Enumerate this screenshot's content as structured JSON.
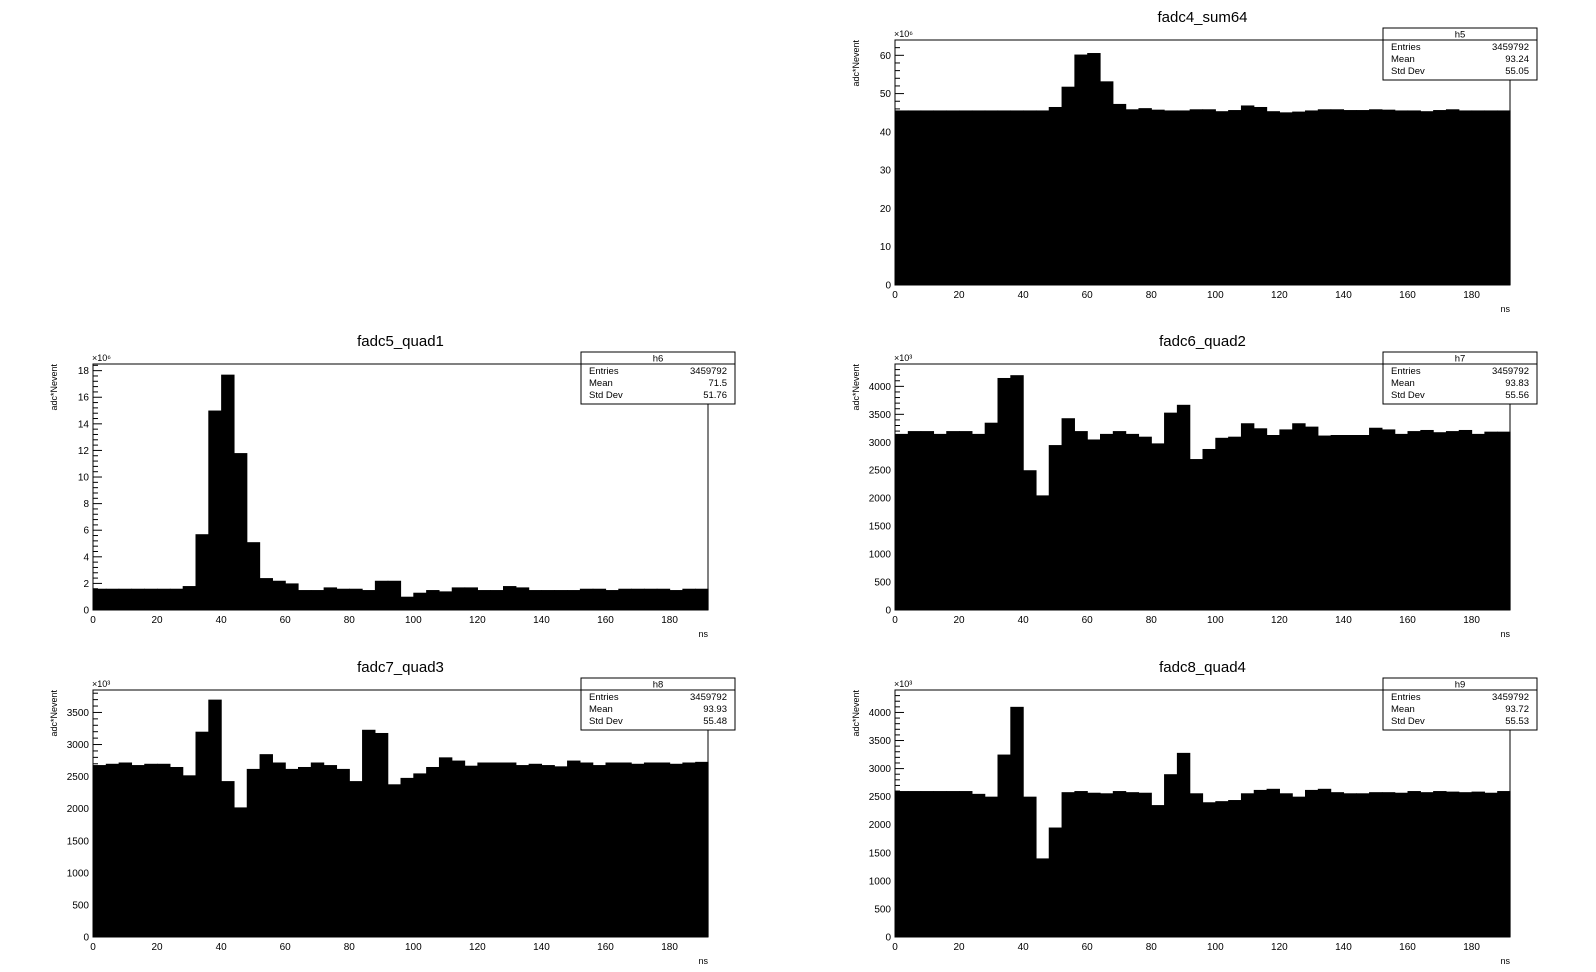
{
  "chart_data": [
    {
      "type": "bar",
      "histogram": true,
      "title": "fadc4_sum64",
      "xlabel": "ns",
      "ylabel": "adc*Nevent",
      "y_multiplier": "×10⁶",
      "xlim": [
        0,
        192
      ],
      "ylim": [
        0,
        64
      ],
      "bin_width": 4,
      "xticks": [
        0,
        20,
        40,
        60,
        80,
        100,
        120,
        140,
        160,
        180
      ],
      "yticks": [
        0,
        10,
        20,
        30,
        40,
        50,
        60
      ],
      "values": [
        45.6,
        45.6,
        45.6,
        45.6,
        45.6,
        45.6,
        45.6,
        45.6,
        45.6,
        45.6,
        45.6,
        45.6,
        46.5,
        51.8,
        60.2,
        60.6,
        53.2,
        47.3,
        45.9,
        46.2,
        45.8,
        45.6,
        45.6,
        45.9,
        45.9,
        45.4,
        45.7,
        46.9,
        46.5,
        45.4,
        45.1,
        45.3,
        45.6,
        45.9,
        45.9,
        45.7,
        45.7,
        45.9,
        45.8,
        45.6,
        45.6,
        45.4,
        45.7,
        45.9,
        45.6,
        45.6,
        45.6,
        45.6
      ],
      "stats": {
        "name": "h5",
        "entries": "3459792",
        "mean": "93.24",
        "std_dev": "55.05"
      }
    },
    {
      "type": "bar",
      "histogram": true,
      "title": "fadc5_quad1",
      "xlabel": "ns",
      "ylabel": "adc*Nevent",
      "y_multiplier": "×10⁶",
      "xlim": [
        0,
        192
      ],
      "ylim": [
        0,
        18.5
      ],
      "bin_width": 4,
      "xticks": [
        0,
        20,
        40,
        60,
        80,
        100,
        120,
        140,
        160,
        180
      ],
      "yticks": [
        0,
        2,
        4,
        6,
        8,
        10,
        12,
        14,
        16,
        18
      ],
      "values": [
        1.6,
        1.6,
        1.6,
        1.6,
        1.6,
        1.6,
        1.6,
        1.8,
        5.7,
        15.0,
        17.7,
        11.8,
        5.1,
        2.4,
        2.2,
        2.0,
        1.5,
        1.5,
        1.7,
        1.6,
        1.6,
        1.5,
        2.2,
        2.2,
        1.0,
        1.3,
        1.5,
        1.4,
        1.7,
        1.7,
        1.5,
        1.5,
        1.8,
        1.7,
        1.5,
        1.5,
        1.5,
        1.5,
        1.6,
        1.6,
        1.5,
        1.6,
        1.6,
        1.6,
        1.6,
        1.5,
        1.6,
        1.6
      ],
      "stats": {
        "name": "h6",
        "entries": "3459792",
        "mean": "71.5",
        "std_dev": "51.76"
      }
    },
    {
      "type": "bar",
      "histogram": true,
      "title": "fadc6_quad2",
      "xlabel": "ns",
      "ylabel": "adc*Nevent",
      "y_multiplier": "×10³",
      "xlim": [
        0,
        192
      ],
      "ylim": [
        0,
        4400
      ],
      "bin_width": 4,
      "xticks": [
        0,
        20,
        40,
        60,
        80,
        100,
        120,
        140,
        160,
        180
      ],
      "yticks": [
        0,
        500,
        1000,
        1500,
        2000,
        2500,
        3000,
        3500,
        4000
      ],
      "values": [
        3150,
        3200,
        3200,
        3150,
        3200,
        3200,
        3150,
        3350,
        4150,
        4200,
        2500,
        2050,
        2950,
        3430,
        3200,
        3050,
        3150,
        3200,
        3150,
        3100,
        2980,
        3530,
        3670,
        2700,
        2880,
        3080,
        3100,
        3340,
        3250,
        3130,
        3230,
        3340,
        3280,
        3120,
        3130,
        3130,
        3130,
        3260,
        3230,
        3150,
        3200,
        3220,
        3180,
        3200,
        3220,
        3150,
        3190,
        3190
      ],
      "stats": {
        "name": "h7",
        "entries": "3459792",
        "mean": "93.83",
        "std_dev": "55.56"
      }
    },
    {
      "type": "bar",
      "histogram": true,
      "title": "fadc7_quad3",
      "xlabel": "ns",
      "ylabel": "adc*Nevent",
      "y_multiplier": "×10³",
      "xlim": [
        0,
        192
      ],
      "ylim": [
        0,
        3850
      ],
      "bin_width": 4,
      "xticks": [
        0,
        20,
        40,
        60,
        80,
        100,
        120,
        140,
        160,
        180
      ],
      "yticks": [
        0,
        500,
        1000,
        1500,
        2000,
        2500,
        3000,
        3500
      ],
      "values": [
        2680,
        2700,
        2720,
        2680,
        2700,
        2700,
        2650,
        2520,
        3200,
        3700,
        2430,
        2020,
        2620,
        2850,
        2720,
        2620,
        2650,
        2720,
        2680,
        2620,
        2430,
        3230,
        3180,
        2380,
        2480,
        2550,
        2650,
        2800,
        2750,
        2670,
        2720,
        2720,
        2720,
        2680,
        2700,
        2680,
        2660,
        2750,
        2720,
        2680,
        2720,
        2720,
        2700,
        2720,
        2720,
        2700,
        2720,
        2730
      ],
      "stats": {
        "name": "h8",
        "entries": "3459792",
        "mean": "93.93",
        "std_dev": "55.48"
      }
    },
    {
      "type": "bar",
      "histogram": true,
      "title": "fadc8_quad4",
      "xlabel": "ns",
      "ylabel": "adc*Nevent",
      "y_multiplier": "×10³",
      "xlim": [
        0,
        192
      ],
      "ylim": [
        0,
        4400
      ],
      "bin_width": 4,
      "xticks": [
        0,
        20,
        40,
        60,
        80,
        100,
        120,
        140,
        160,
        180
      ],
      "yticks": [
        0,
        500,
        1000,
        1500,
        2000,
        2500,
        3000,
        3500,
        4000
      ],
      "values": [
        2600,
        2600,
        2600,
        2600,
        2600,
        2600,
        2550,
        2500,
        3250,
        4100,
        2500,
        1400,
        1950,
        2580,
        2600,
        2570,
        2560,
        2600,
        2580,
        2570,
        2350,
        2900,
        3280,
        2560,
        2400,
        2420,
        2440,
        2560,
        2620,
        2640,
        2560,
        2500,
        2620,
        2640,
        2580,
        2560,
        2560,
        2580,
        2580,
        2570,
        2600,
        2580,
        2600,
        2590,
        2580,
        2590,
        2570,
        2600
      ],
      "stats": {
        "name": "h9",
        "entries": "3459792",
        "mean": "93.72",
        "std_dev": "55.53"
      }
    }
  ],
  "stats_labels": {
    "entries": "Entries",
    "mean": "Mean",
    "std_dev": "Std Dev"
  }
}
